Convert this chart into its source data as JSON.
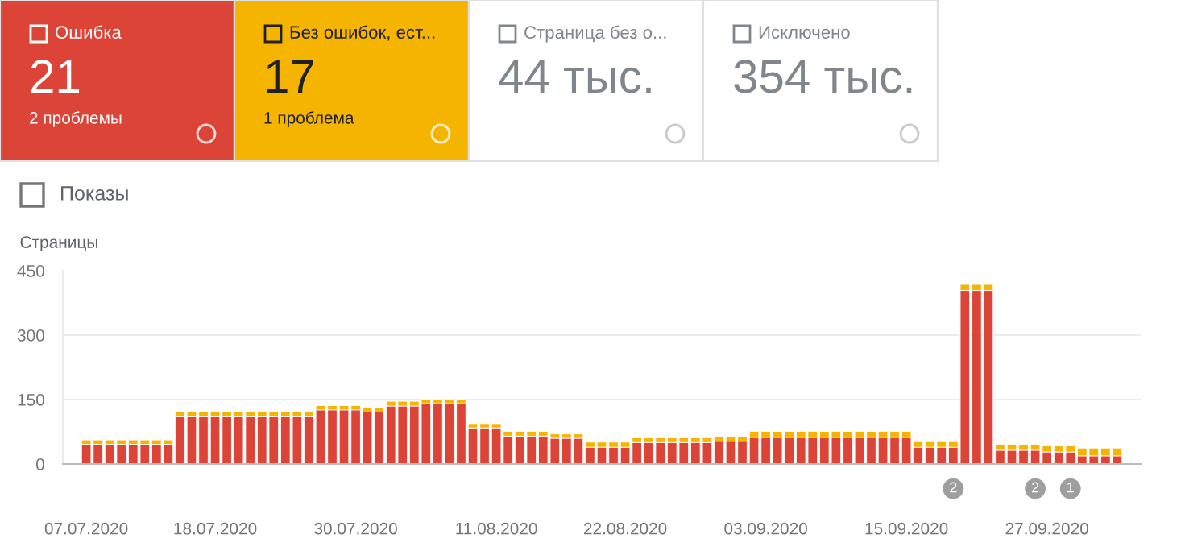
{
  "chart_data": [
    {
      "type": "other",
      "annotations": [
        "Ошибка",
        "21",
        "2 проблемы",
        "Без ошибок, ест...",
        "17",
        "1 проблема",
        "Страница без о...",
        "44 тыс.",
        "Исключено",
        "354 тыс.",
        "Показы"
      ]
    },
    {
      "type": "bar",
      "stacked": true,
      "ylabel": "Страницы",
      "grid": "y",
      "x": [
        "2020-07-07",
        "2020-07-08",
        "2020-07-09",
        "2020-07-10",
        "2020-07-11",
        "2020-07-12",
        "2020-07-13",
        "2020-07-14",
        "2020-07-15",
        "2020-07-16",
        "2020-07-17",
        "2020-07-18",
        "2020-07-19",
        "2020-07-20",
        "2020-07-21",
        "2020-07-22",
        "2020-07-23",
        "2020-07-24",
        "2020-07-25",
        "2020-07-26",
        "2020-07-27",
        "2020-07-28",
        "2020-07-29",
        "2020-07-30",
        "2020-07-31",
        "2020-08-01",
        "2020-08-02",
        "2020-08-03",
        "2020-08-04",
        "2020-08-05",
        "2020-08-06",
        "2020-08-07",
        "2020-08-08",
        "2020-08-09",
        "2020-08-10",
        "2020-08-11",
        "2020-08-12",
        "2020-08-13",
        "2020-08-14",
        "2020-08-15",
        "2020-08-16",
        "2020-08-17",
        "2020-08-18",
        "2020-08-19",
        "2020-08-20",
        "2020-08-21",
        "2020-08-22",
        "2020-08-23",
        "2020-08-24",
        "2020-08-25",
        "2020-08-26",
        "2020-08-27",
        "2020-08-28",
        "2020-08-29",
        "2020-08-30",
        "2020-08-31",
        "2020-09-01",
        "2020-09-02",
        "2020-09-03",
        "2020-09-04",
        "2020-09-05",
        "2020-09-06",
        "2020-09-07",
        "2020-09-08",
        "2020-09-09",
        "2020-09-10",
        "2020-09-11",
        "2020-09-12",
        "2020-09-13",
        "2020-09-14",
        "2020-09-15",
        "2020-09-16",
        "2020-09-17",
        "2020-09-18",
        "2020-09-19",
        "2020-09-20",
        "2020-09-21",
        "2020-09-22",
        "2020-09-23",
        "2020-09-24",
        "2020-09-25",
        "2020-09-26",
        "2020-09-27",
        "2020-09-28",
        "2020-09-29",
        "2020-09-30",
        "2020-10-01",
        "2020-10-02",
        "2020-10-03"
      ],
      "series": [
        {
          "color": "#db4437",
          "values": [
            46,
            46,
            46,
            46,
            46,
            46,
            46,
            46,
            110,
            110,
            110,
            110,
            110,
            110,
            110,
            110,
            110,
            110,
            110,
            110,
            126,
            126,
            126,
            126,
            121,
            121,
            135,
            135,
            135,
            141,
            141,
            141,
            141,
            84,
            84,
            84,
            65,
            65,
            65,
            65,
            60,
            60,
            60,
            39,
            39,
            39,
            39,
            50,
            50,
            50,
            50,
            50,
            50,
            50,
            53,
            53,
            53,
            62,
            62,
            62,
            62,
            62,
            62,
            62,
            62,
            62,
            62,
            62,
            62,
            62,
            62,
            39,
            39,
            39,
            39,
            404,
            404,
            404,
            32,
            32,
            32,
            32,
            28,
            28,
            28,
            19,
            19,
            19,
            19
          ]
        },
        {
          "color": "#f4b400",
          "values": [
            10,
            10,
            10,
            10,
            10,
            10,
            10,
            10,
            11,
            11,
            11,
            11,
            11,
            11,
            11,
            11,
            11,
            11,
            11,
            11,
            10,
            10,
            10,
            10,
            10,
            10,
            11,
            11,
            11,
            10,
            10,
            10,
            10,
            10,
            10,
            10,
            11,
            11,
            11,
            11,
            10,
            10,
            10,
            12,
            12,
            12,
            12,
            11,
            11,
            11,
            11,
            11,
            11,
            11,
            11,
            11,
            11,
            14,
            14,
            14,
            14,
            14,
            14,
            14,
            14,
            14,
            14,
            14,
            14,
            14,
            14,
            13,
            13,
            13,
            13,
            14,
            14,
            14,
            14,
            14,
            14,
            14,
            14,
            14,
            14,
            18,
            18,
            18,
            18
          ]
        }
      ],
      "xlim": [
        "2020-07-05",
        "2020-10-05"
      ],
      "xticks": [
        {
          "value": "2020-07-07",
          "label": "07.07.2020"
        },
        {
          "value": "2020-07-18",
          "label": "18.07.2020"
        },
        {
          "value": "2020-07-30",
          "label": "30.07.2020"
        },
        {
          "value": "2020-08-11",
          "label": "11.08.2020"
        },
        {
          "value": "2020-08-22",
          "label": "22.08.2020"
        },
        {
          "value": "2020-09-03",
          "label": "03.09.2020"
        },
        {
          "value": "2020-09-15",
          "label": "15.09.2020"
        },
        {
          "value": "2020-09-27",
          "label": "27.09.2020"
        }
      ],
      "ylim": [
        0,
        450
      ],
      "yticks": [
        0,
        150,
        300,
        450
      ],
      "annotations": [
        {
          "text": "2",
          "x": "2020-09-19",
          "y": 0
        },
        {
          "text": "2",
          "x": "2020-09-26",
          "y": 0
        },
        {
          "text": "1",
          "x": "2020-09-29",
          "y": 0
        }
      ]
    }
  ]
}
